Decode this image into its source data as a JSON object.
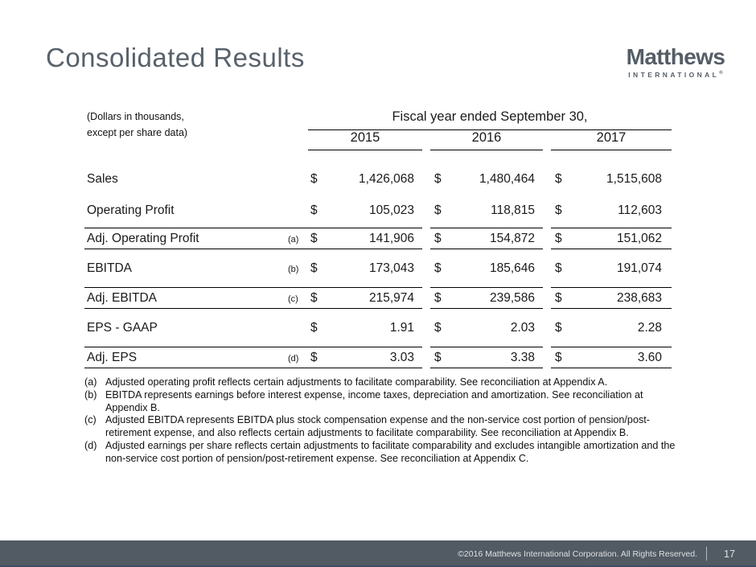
{
  "slide": {
    "title": "Consolidated Results",
    "logo": {
      "name": "Matthews",
      "subtitle": "INTERNATIONAL",
      "registered": "®"
    },
    "table": {
      "units_note_line1": "(Dollars in thousands,",
      "units_note_line2": "except per share data)",
      "header": "Fiscal year ended September 30,",
      "years": [
        "2015",
        "2016",
        "2017"
      ],
      "currency_symbol": "$",
      "rows": [
        {
          "label": "Sales",
          "footnote": "",
          "bordered": false,
          "values": [
            "1,426,068",
            "1,480,464",
            "1,515,608"
          ]
        },
        {
          "label": "Operating Profit",
          "footnote": "",
          "bordered": false,
          "values": [
            "105,023",
            "118,815",
            "112,603"
          ]
        },
        {
          "label": "Adj. Operating Profit",
          "footnote": "(a)",
          "bordered": true,
          "values": [
            "141,906",
            "154,872",
            "151,062"
          ]
        },
        {
          "label": "EBITDA",
          "footnote": "(b)",
          "bordered": false,
          "values": [
            "173,043",
            "185,646",
            "191,074"
          ]
        },
        {
          "label": "Adj. EBITDA",
          "footnote": "(c)",
          "bordered": true,
          "values": [
            "215,974",
            "239,586",
            "238,683"
          ]
        },
        {
          "label": "EPS - GAAP",
          "footnote": "",
          "bordered": false,
          "values": [
            "1.91",
            "2.03",
            "2.28"
          ]
        },
        {
          "label": "Adj. EPS",
          "footnote": "(d)",
          "bordered": true,
          "values": [
            "3.03",
            "3.38",
            "3.60"
          ]
        }
      ]
    },
    "footnotes": [
      {
        "marker": "(a)",
        "text": "Adjusted operating profit reflects certain adjustments to facilitate comparability. See reconciliation at Appendix A."
      },
      {
        "marker": "(b)",
        "text": "EBITDA represents earnings before interest expense, income taxes, depreciation and amortization. See reconciliation at Appendix B."
      },
      {
        "marker": "(c)",
        "text": "Adjusted EBITDA represents EBITDA plus stock compensation expense and the non-service cost portion of pension/post-retirement expense, and also reflects certain adjustments to facilitate comparability.  See reconciliation at Appendix B."
      },
      {
        "marker": "(d)",
        "text": "Adjusted earnings per share reflects certain adjustments to facilitate comparability and excludes intangible amortization and the non-service cost portion of pension/post-retirement expense. See reconciliation at Appendix C."
      }
    ],
    "footer": {
      "copyright": "©2016 Matthews International Corporation. All Rights Reserved.",
      "page_number": "17"
    },
    "colors": {
      "title": "#58616b",
      "logo": "#555e67",
      "footer_bg": "#525a63",
      "footer_text": "#dde1e4",
      "rule": "#000000"
    }
  }
}
